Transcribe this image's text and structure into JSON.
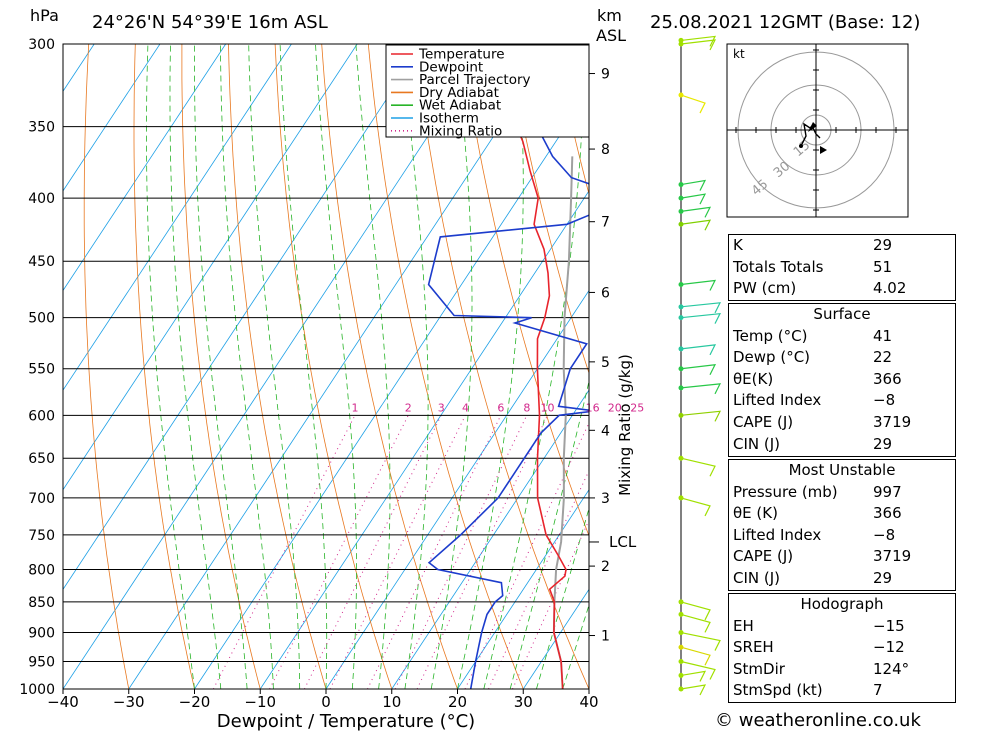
{
  "header": {
    "hpa_label": "hPa",
    "location": "24°26'N  54°39'E  16m  ASL",
    "km_label": "km",
    "asl_label": "ASL",
    "datetime": "25.08.2021  12GMT  (Base: 12)"
  },
  "chart_data": {
    "type": "line",
    "xlabel": "Dewpoint / Temperature (°C)",
    "ylabel": "hPa",
    "xlim": [
      -40,
      40
    ],
    "ylim": [
      1000,
      300
    ],
    "x_ticks": [
      "−40",
      "−30",
      "−20",
      "−10",
      "0",
      "10",
      "20",
      "30",
      "40"
    ],
    "y_ticks": [
      "300",
      "350",
      "400",
      "450",
      "500",
      "550",
      "600",
      "650",
      "700",
      "750",
      "800",
      "850",
      "900",
      "950",
      "1000"
    ],
    "height_ticks": [
      "1",
      "2",
      "3",
      "4",
      "5",
      "6",
      "7",
      "8",
      "9"
    ],
    "lcl_label": "LCL",
    "mixing_ratio_label": "Mixing Ratio (g/kg)",
    "mixing_ratio_values": [
      "1",
      "2",
      "3",
      "4",
      "6",
      "8",
      "10",
      "16",
      "20",
      "25"
    ],
    "legend": [
      "Temperature",
      "Dewpoint",
      "Parcel Trajectory",
      "Dry Adiabat",
      "Wet Adiabat",
      "Isotherm",
      "Mixing Ratio"
    ],
    "colors": {
      "temperature": "#e8242c",
      "dewpoint": "#1c3ccc",
      "parcel": "#a0a0a0",
      "dry_adiabat": "#e87820",
      "wet_adiabat": "#28b428",
      "isotherm": "#1ea0e6",
      "mixing_ratio": "#d2288c"
    }
  },
  "hodograph": {
    "unit_label": "kt",
    "ring_labels": [
      "15",
      "30",
      "45"
    ]
  },
  "indices": [
    {
      "label": "K",
      "value": "29"
    },
    {
      "label": "Totals Totals",
      "value": "51"
    },
    {
      "label": "PW (cm)",
      "value": "4.02"
    }
  ],
  "surface": {
    "title": "Surface",
    "rows": [
      {
        "label": "Temp (°C)",
        "value": "41"
      },
      {
        "label": "Dewp (°C)",
        "value": "22"
      },
      {
        "label": "θE(K)",
        "value": "366"
      },
      {
        "label": "Lifted Index",
        "value": "−8"
      },
      {
        "label": "CAPE (J)",
        "value": "3719"
      },
      {
        "label": "CIN (J)",
        "value": "29"
      }
    ]
  },
  "most_unstable": {
    "title": "Most Unstable",
    "rows": [
      {
        "label": "Pressure (mb)",
        "value": "997"
      },
      {
        "label": "θE (K)",
        "value": "366"
      },
      {
        "label": "Lifted Index",
        "value": "−8"
      },
      {
        "label": "CAPE (J)",
        "value": "3719"
      },
      {
        "label": "CIN (J)",
        "value": "29"
      }
    ]
  },
  "hodo_params": {
    "title": "Hodograph",
    "rows": [
      {
        "label": "EH",
        "value": "−15"
      },
      {
        "label": "SREH",
        "value": "−12"
      },
      {
        "label": "StmDir",
        "value": "124°"
      },
      {
        "label": "StmSpd (kt)",
        "value": "7"
      }
    ]
  },
  "footer": {
    "copyright": "© weatheronline.co.uk"
  }
}
